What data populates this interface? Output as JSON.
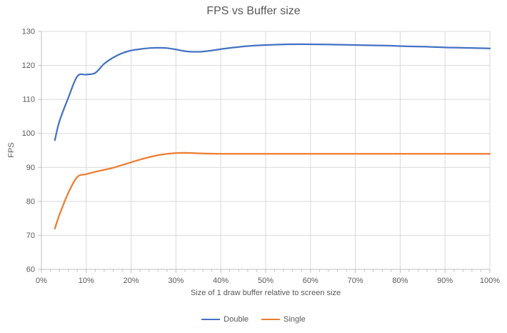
{
  "chart_data": {
    "type": "line",
    "title": "FPS vs Buffer size",
    "xlabel": "Size of 1 draw buffer relative to screen size",
    "ylabel": "FPS",
    "xlim": [
      0,
      100
    ],
    "ylim": [
      60,
      130
    ],
    "y_ticks": [
      60,
      70,
      80,
      90,
      100,
      110,
      120,
      130
    ],
    "x_ticks": [
      0,
      10,
      20,
      30,
      40,
      50,
      60,
      70,
      80,
      90,
      100
    ],
    "x_tick_labels": [
      "0%",
      "10%",
      "20%",
      "30%",
      "40%",
      "50%",
      "60%",
      "70%",
      "80%",
      "90%",
      "100%"
    ],
    "x_minor_step": 2,
    "grid": true,
    "smoothed": true,
    "legend_position": "bottom",
    "x": [
      3,
      4,
      6,
      8,
      10,
      12,
      14,
      16,
      18,
      20,
      22,
      24,
      26,
      28,
      30,
      32,
      34,
      36,
      38,
      40,
      43,
      46,
      50,
      54,
      58,
      62,
      66,
      70,
      74,
      78,
      82,
      86,
      90,
      94,
      100
    ],
    "series": [
      {
        "name": "Double",
        "color": "#4472C4",
        "values": [
          98,
          103.5,
          110.5,
          116.8,
          117.3,
          117.8,
          120.5,
          122.3,
          123.6,
          124.4,
          124.8,
          125.1,
          125.2,
          125.1,
          124.7,
          124.2,
          124.0,
          124.1,
          124.4,
          124.8,
          125.3,
          125.7,
          126.0,
          126.2,
          126.25,
          126.2,
          126.1,
          126.0,
          125.9,
          125.8,
          125.6,
          125.5,
          125.3,
          125.2,
          125.0
        ]
      },
      {
        "name": "Single",
        "color": "#ED7D31",
        "values": [
          72,
          76,
          82.5,
          87.2,
          88,
          88.7,
          89.3,
          89.9,
          90.7,
          91.5,
          92.3,
          93.0,
          93.6,
          94.0,
          94.2,
          94.3,
          94.2,
          94.1,
          94.05,
          94,
          94,
          94,
          94,
          94,
          94,
          94,
          94,
          94,
          94,
          94,
          94,
          94,
          94,
          94,
          94
        ]
      }
    ]
  },
  "colors": {
    "text": "#595959",
    "gridline": "#D9D9D9",
    "axis": "#BFBFBF",
    "background": "#FFFFFF"
  }
}
